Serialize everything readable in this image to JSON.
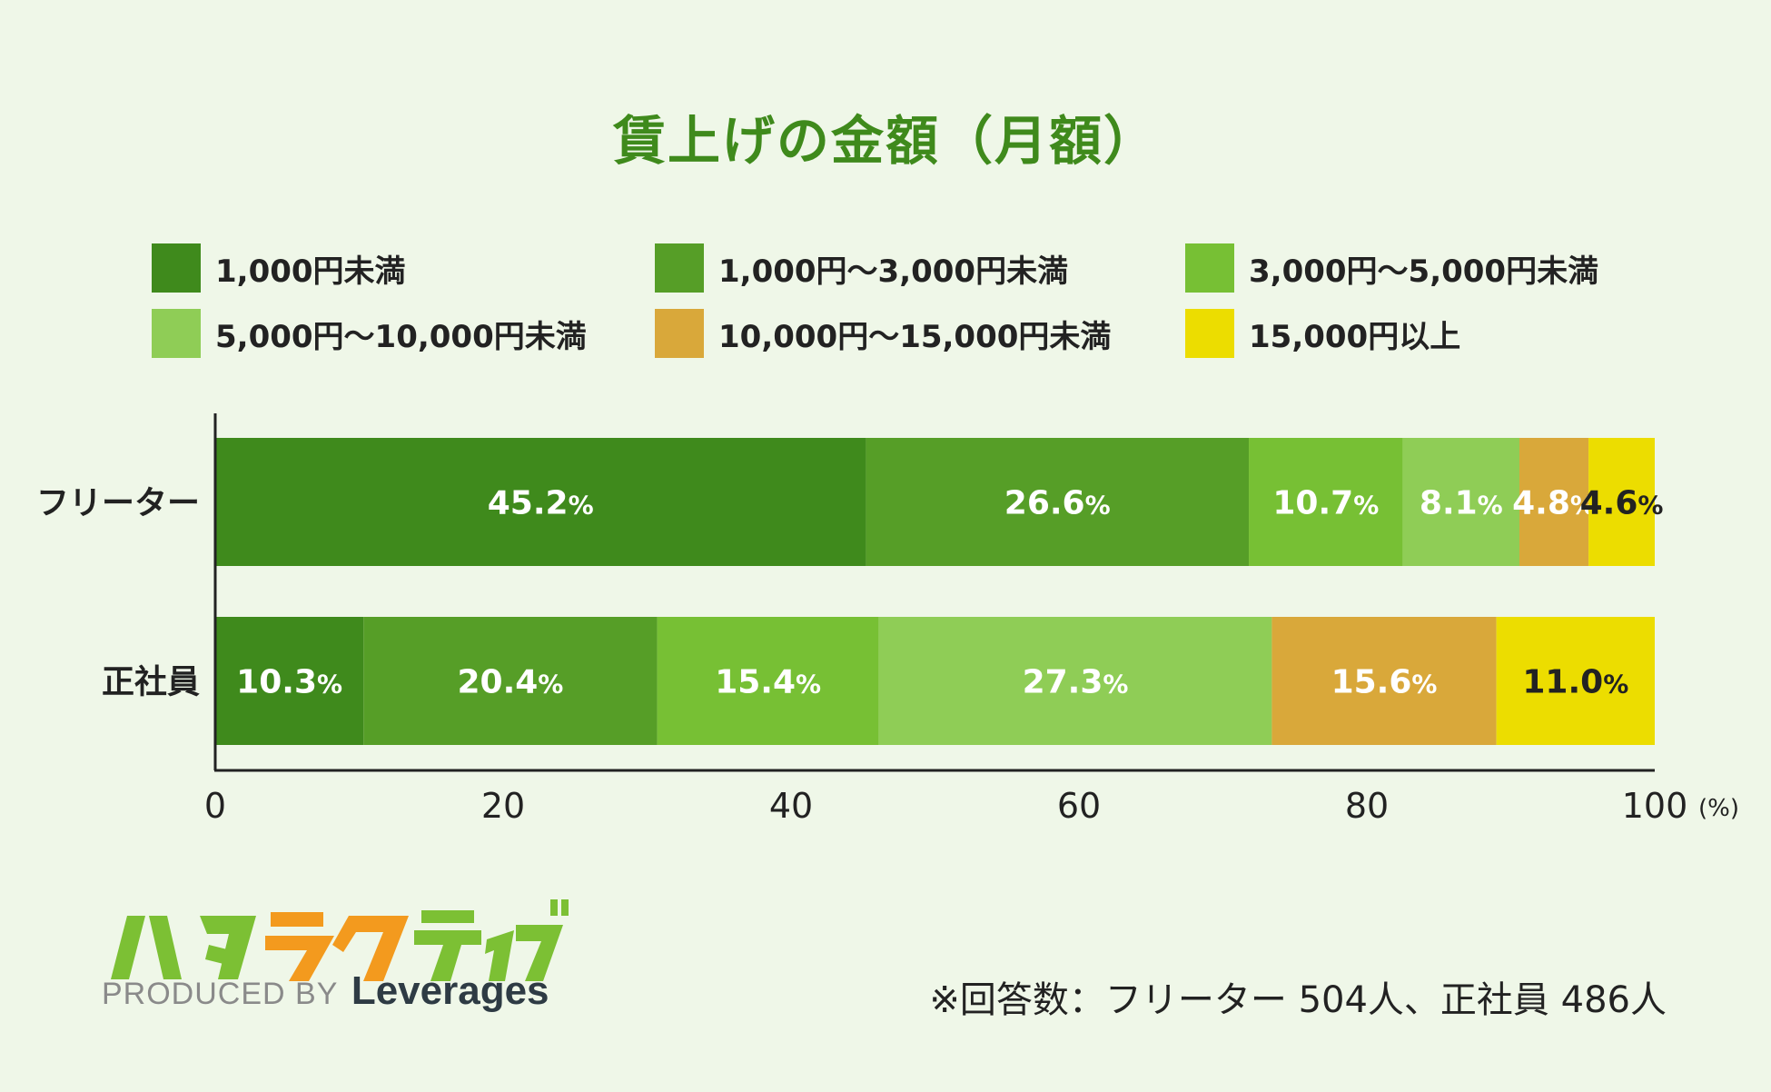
{
  "title": "賃上げの金額（月額）",
  "legend": [
    {
      "label": "1,000円未満",
      "color": "#3f8a1c"
    },
    {
      "label": "1,000円～3,000円未満",
      "color": "#569e27"
    },
    {
      "label": "3,000円～5,000円未満",
      "color": "#77c034"
    },
    {
      "label": "5,000円～10,000円未満",
      "color": "#8fcd56"
    },
    {
      "label": "10,000円～15,000円未満",
      "color": "#d9a83a"
    },
    {
      "label": "15,000円以上",
      "color": "#ecdd00"
    }
  ],
  "chart_data": {
    "type": "bar",
    "orientation": "horizontal",
    "stacked": true,
    "categories": [
      "フリーター",
      "正社員"
    ],
    "series": [
      {
        "name": "1,000円未満",
        "values": [
          45.2,
          10.3
        ]
      },
      {
        "name": "1,000円～3,000円未満",
        "values": [
          26.6,
          20.4
        ]
      },
      {
        "name": "3,000円～5,000円未満",
        "values": [
          10.7,
          15.4
        ]
      },
      {
        "name": "5,000円～10,000円未満",
        "values": [
          8.1,
          27.3
        ]
      },
      {
        "name": "10,000円～15,000円未満",
        "values": [
          4.8,
          15.6
        ]
      },
      {
        "name": "15,000円以上",
        "values": [
          4.6,
          11.0
        ]
      }
    ],
    "data_labels": [
      [
        "45.2",
        "26.6",
        "10.7",
        "8.1",
        "4.8",
        "4.6"
      ],
      [
        "10.3",
        "20.4",
        "15.4",
        "27.3",
        "15.6",
        "11.0"
      ]
    ],
    "percent_sign": "%",
    "label_colors": [
      "#ffffff",
      "#ffffff",
      "#ffffff",
      "#ffffff",
      "#ffffff",
      "#222222"
    ],
    "x_ticks": [
      "0",
      "20",
      "40",
      "60",
      "80",
      "100"
    ],
    "x_tick_values": [
      0,
      20,
      40,
      60,
      80,
      100
    ],
    "xlim": [
      0,
      100
    ],
    "x_unit": "(%)",
    "title": "賃上げの金額（月額）"
  },
  "footer": {
    "note": "※回答数：フリーター 504人、正社員 486人"
  },
  "logo": {
    "wordmark": "ハタラクティブ",
    "produced_by": "PRODUCED BY",
    "brand": "Leverages",
    "colors": [
      "#7cc034",
      "#7cc034",
      "#f39a1e",
      "#f39a1e",
      "#7cc034",
      "#7cc034"
    ]
  }
}
